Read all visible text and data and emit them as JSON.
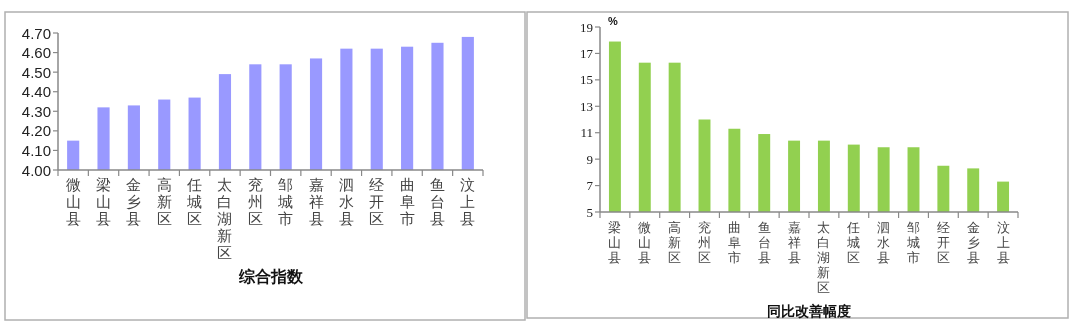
{
  "chart_data": [
    {
      "type": "bar",
      "title": "综合指数",
      "categories": [
        "微山县",
        "梁山县",
        "金乡县",
        "高新区",
        "任城区",
        "太白湖新区",
        "兖州区",
        "邹城市",
        "嘉祥县",
        "泗水县",
        "经开区",
        "曲阜市",
        "鱼台县",
        "汶上县"
      ],
      "values": [
        4.15,
        4.32,
        4.33,
        4.36,
        4.37,
        4.49,
        4.54,
        4.54,
        4.57,
        4.62,
        4.62,
        4.63,
        4.65,
        4.68
      ],
      "color": "#9999ff",
      "ylim": [
        4.0,
        4.7
      ],
      "yticks": [
        {
          "value": 4.0,
          "label": "4.00"
        },
        {
          "value": 4.1,
          "label": "4.10"
        },
        {
          "value": 4.2,
          "label": "4.20"
        },
        {
          "value": 4.3,
          "label": "4.30"
        },
        {
          "value": 4.4,
          "label": "4.40"
        },
        {
          "value": 4.5,
          "label": "4.50"
        },
        {
          "value": 4.6,
          "label": "4.60"
        },
        {
          "value": 4.7,
          "label": "4.70"
        }
      ],
      "grid": false
    },
    {
      "type": "bar",
      "title": "同比改善幅度",
      "ylabel": "%",
      "categories": [
        "梁山县",
        "微山县",
        "高新区",
        "兖州区",
        "曲阜市",
        "鱼台县",
        "嘉祥县",
        "太白湖新区",
        "任城区",
        "泗水县",
        "邹城市",
        "经开区",
        "金乡县",
        "汶上县"
      ],
      "values": [
        17.9,
        16.3,
        16.3,
        12.0,
        11.3,
        10.9,
        10.4,
        10.4,
        10.1,
        9.9,
        9.9,
        8.5,
        8.3,
        7.3
      ],
      "color": "#92d050",
      "ylim": [
        5,
        19
      ],
      "yticks": [
        5,
        7,
        9,
        11,
        13,
        15,
        17,
        19
      ],
      "grid": false
    }
  ]
}
